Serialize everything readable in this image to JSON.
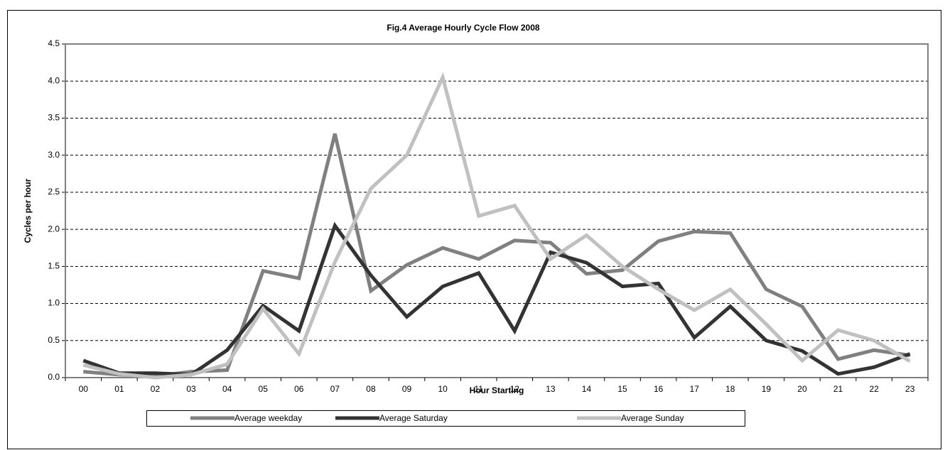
{
  "chart_data": {
    "type": "line",
    "title": "Fig.4 Average Hourly Cycle Flow 2008",
    "xlabel": "Hour Starting",
    "ylabel": "Cycles per hour",
    "categories": [
      "00",
      "01",
      "02",
      "03",
      "04",
      "05",
      "06",
      "07",
      "08",
      "09",
      "10",
      "11",
      "12",
      "13",
      "14",
      "15",
      "16",
      "17",
      "18",
      "19",
      "20",
      "21",
      "22",
      "23"
    ],
    "series": [
      {
        "name": "Average weekday",
        "color": "#808080",
        "values": [
          0.08,
          0.04,
          0.02,
          0.08,
          0.1,
          1.44,
          1.34,
          3.29,
          1.17,
          1.52,
          1.75,
          1.6,
          1.85,
          1.82,
          1.4,
          1.45,
          1.84,
          1.97,
          1.95,
          1.19,
          0.96,
          0.25,
          0.37,
          0.3
        ]
      },
      {
        "name": "Average Saturday",
        "color": "#333333",
        "values": [
          0.23,
          0.06,
          0.06,
          0.04,
          0.37,
          0.97,
          0.63,
          2.05,
          1.38,
          0.82,
          1.23,
          1.41,
          0.63,
          1.69,
          1.55,
          1.23,
          1.27,
          0.54,
          0.96,
          0.5,
          0.36,
          0.05,
          0.14,
          0.32
        ]
      },
      {
        "name": "Average Sunday",
        "color": "#c0c0c0",
        "values": [
          0.17,
          0.05,
          0.0,
          0.04,
          0.18,
          0.93,
          0.32,
          1.56,
          2.55,
          3.0,
          4.05,
          2.18,
          2.32,
          1.6,
          1.92,
          1.5,
          1.19,
          0.91,
          1.19,
          0.72,
          0.23,
          0.64,
          0.5,
          0.22
        ]
      }
    ],
    "ylim": [
      0,
      4.5
    ],
    "yticks": [
      {
        "value": 0,
        "label": "0.0"
      },
      0.5,
      {
        "value": 1,
        "label": "1.0"
      },
      1.5,
      {
        "value": 2,
        "label": "2.0"
      },
      2.5,
      {
        "value": 3,
        "label": "3.0"
      },
      3.5,
      {
        "value": 4,
        "label": "4.0"
      },
      4.5
    ],
    "grid": true,
    "legend": "bottom"
  }
}
